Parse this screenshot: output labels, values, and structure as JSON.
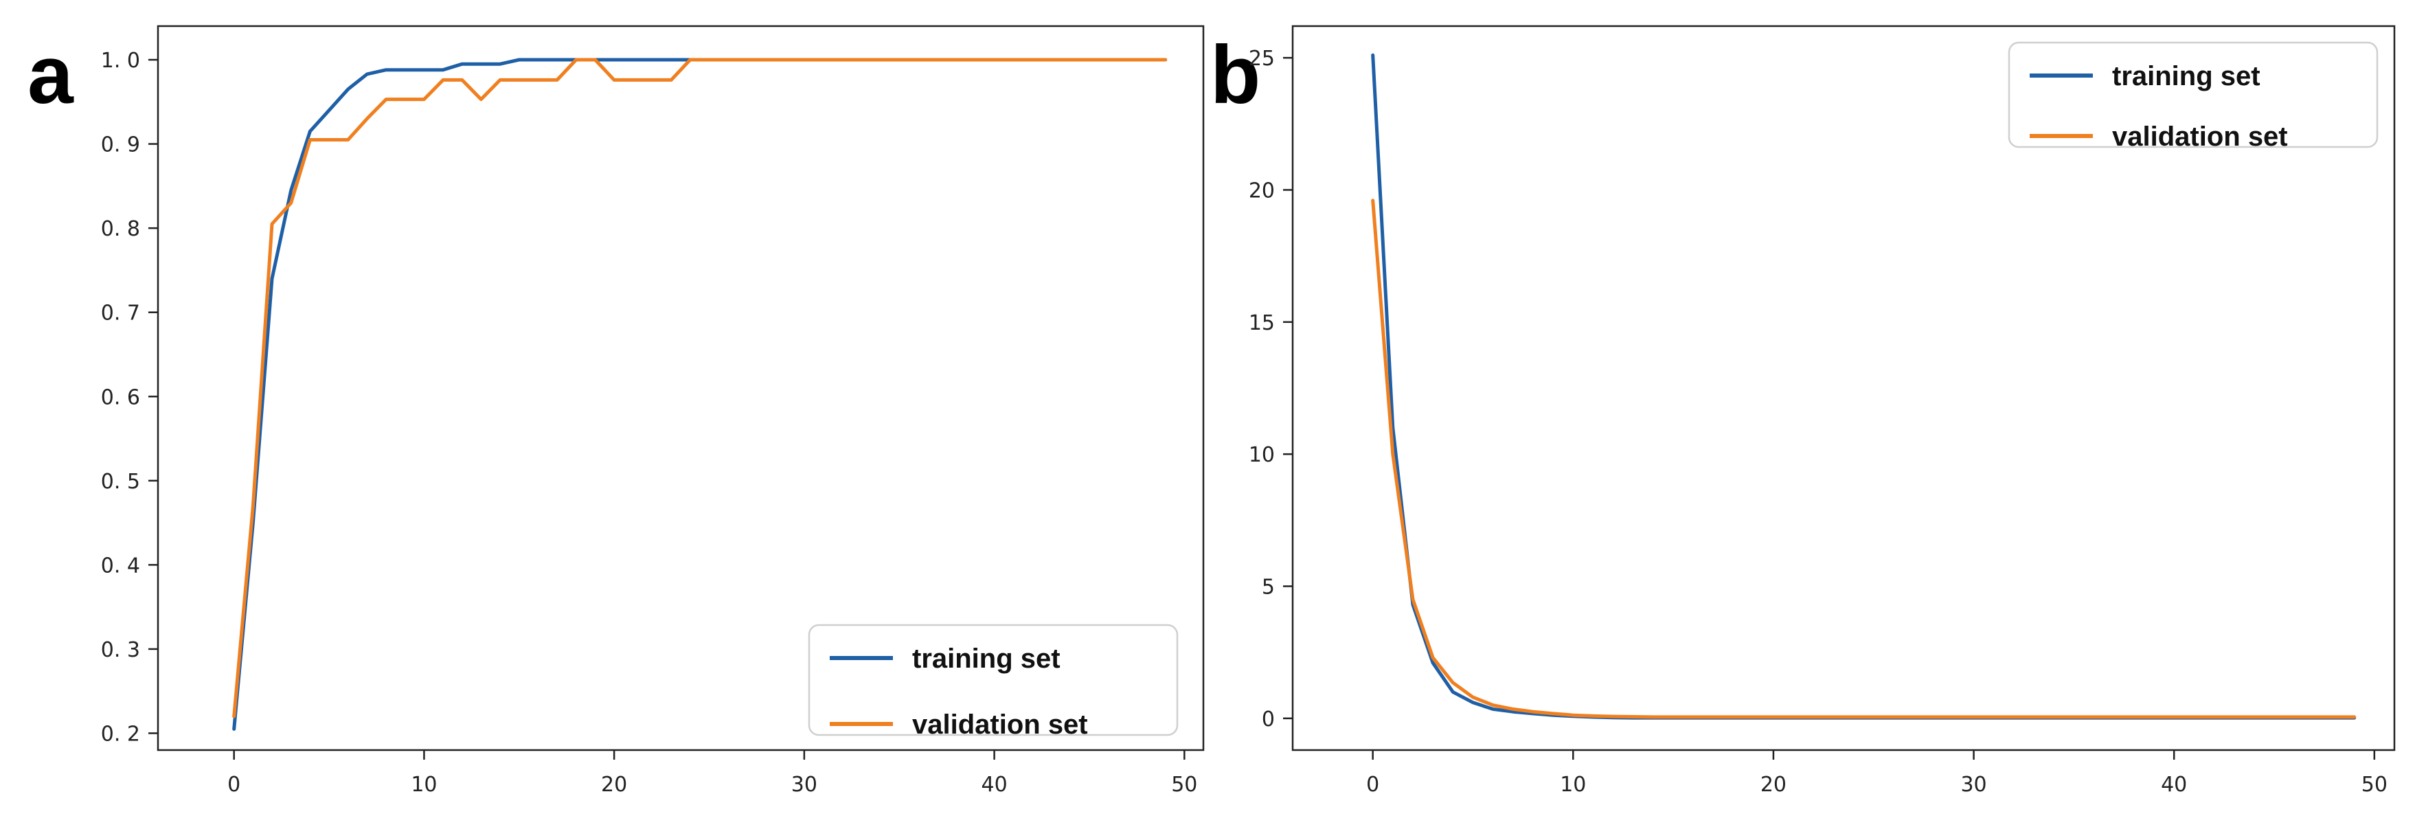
{
  "chart_data": [
    {
      "type": "line",
      "panel_label": "a",
      "xlim": [
        -4,
        51
      ],
      "ylim": [
        0.18,
        1.04
      ],
      "xticks": [
        0,
        10,
        20,
        30,
        40,
        50
      ],
      "yticks": [
        0.2,
        0.3,
        0.4,
        0.5,
        0.6,
        0.7,
        0.8,
        0.9,
        1.0
      ],
      "ytick_labels": [
        "0. 2",
        "0. 3",
        "0. 4",
        "0. 5",
        "0. 6",
        "0. 7",
        "0. 8",
        "0. 9",
        "1. 0"
      ],
      "grid": false,
      "legend_position": "lower-right",
      "series": [
        {
          "name": "training set",
          "color": "#1f5fa6",
          "x": [
            0,
            1,
            2,
            3,
            4,
            5,
            6,
            7,
            8,
            9,
            10,
            11,
            12,
            13,
            14,
            15,
            16,
            17,
            18,
            19,
            20,
            21,
            22,
            23,
            24,
            25,
            26,
            27,
            28,
            29,
            30,
            31,
            32,
            33,
            34,
            35,
            36,
            37,
            38,
            39,
            40,
            41,
            42,
            43,
            44,
            45,
            46,
            47,
            48,
            49
          ],
          "y": [
            0.205,
            0.45,
            0.74,
            0.845,
            0.915,
            0.94,
            0.965,
            0.983,
            0.988,
            0.988,
            0.988,
            0.988,
            0.995,
            0.995,
            0.995,
            1.0,
            1.0,
            1.0,
            1.0,
            1.0,
            1.0,
            1.0,
            1.0,
            1.0,
            1.0,
            1.0,
            1.0,
            1.0,
            1.0,
            1.0,
            1.0,
            1.0,
            1.0,
            1.0,
            1.0,
            1.0,
            1.0,
            1.0,
            1.0,
            1.0,
            1.0,
            1.0,
            1.0,
            1.0,
            1.0,
            1.0,
            1.0,
            1.0,
            1.0,
            1.0
          ]
        },
        {
          "name": "validation set",
          "color": "#f07f1f",
          "x": [
            0,
            1,
            2,
            3,
            4,
            5,
            6,
            7,
            8,
            9,
            10,
            11,
            12,
            13,
            14,
            15,
            16,
            17,
            18,
            19,
            20,
            21,
            22,
            23,
            24,
            25,
            26,
            27,
            28,
            29,
            30,
            31,
            32,
            33,
            34,
            35,
            36,
            37,
            38,
            39,
            40,
            41,
            42,
            43,
            44,
            45,
            46,
            47,
            48,
            49
          ],
          "y": [
            0.22,
            0.47,
            0.805,
            0.83,
            0.905,
            0.905,
            0.905,
            0.93,
            0.953,
            0.953,
            0.953,
            0.976,
            0.976,
            0.953,
            0.976,
            0.976,
            0.976,
            0.976,
            1.0,
            1.0,
            0.976,
            0.976,
            0.976,
            0.976,
            1.0,
            1.0,
            1.0,
            1.0,
            1.0,
            1.0,
            1.0,
            1.0,
            1.0,
            1.0,
            1.0,
            1.0,
            1.0,
            1.0,
            1.0,
            1.0,
            1.0,
            1.0,
            1.0,
            1.0,
            1.0,
            1.0,
            1.0,
            1.0,
            1.0,
            1.0
          ]
        }
      ]
    },
    {
      "type": "line",
      "panel_label": "b",
      "xlim": [
        -4,
        51
      ],
      "ylim": [
        -1.2,
        26.2
      ],
      "xticks": [
        0,
        10,
        20,
        30,
        40,
        50
      ],
      "yticks": [
        0,
        5,
        10,
        15,
        20,
        25
      ],
      "ytick_labels": [
        "0",
        "5",
        "10",
        "15",
        "20",
        "25"
      ],
      "grid": false,
      "legend_position": "upper-right",
      "series": [
        {
          "name": "training set",
          "color": "#1f5fa6",
          "x": [
            0,
            1,
            2,
            3,
            4,
            5,
            6,
            7,
            8,
            9,
            10,
            11,
            12,
            13,
            14,
            15,
            16,
            17,
            18,
            19,
            20,
            21,
            22,
            23,
            24,
            25,
            26,
            27,
            28,
            29,
            30,
            31,
            32,
            33,
            34,
            35,
            36,
            37,
            38,
            39,
            40,
            41,
            42,
            43,
            44,
            45,
            46,
            47,
            48,
            49
          ],
          "y": [
            25.1,
            11.0,
            4.3,
            2.1,
            1.0,
            0.6,
            0.35,
            0.25,
            0.18,
            0.12,
            0.08,
            0.05,
            0.03,
            0.02,
            0.02,
            0.02,
            0.02,
            0.02,
            0.02,
            0.02,
            0.02,
            0.02,
            0.02,
            0.02,
            0.02,
            0.02,
            0.02,
            0.02,
            0.02,
            0.02,
            0.02,
            0.02,
            0.02,
            0.02,
            0.02,
            0.02,
            0.02,
            0.02,
            0.02,
            0.02,
            0.02,
            0.02,
            0.02,
            0.02,
            0.02,
            0.02,
            0.02,
            0.02,
            0.02,
            0.02
          ]
        },
        {
          "name": "validation set",
          "color": "#f07f1f",
          "x": [
            0,
            1,
            2,
            3,
            4,
            5,
            6,
            7,
            8,
            9,
            10,
            11,
            12,
            13,
            14,
            15,
            16,
            17,
            18,
            19,
            20,
            21,
            22,
            23,
            24,
            25,
            26,
            27,
            28,
            29,
            30,
            31,
            32,
            33,
            34,
            35,
            36,
            37,
            38,
            39,
            40,
            41,
            42,
            43,
            44,
            45,
            46,
            47,
            48,
            49
          ],
          "y": [
            19.6,
            10.0,
            4.5,
            2.3,
            1.35,
            0.8,
            0.5,
            0.35,
            0.25,
            0.18,
            0.12,
            0.09,
            0.07,
            0.06,
            0.05,
            0.05,
            0.05,
            0.05,
            0.05,
            0.05,
            0.05,
            0.05,
            0.05,
            0.05,
            0.05,
            0.05,
            0.05,
            0.05,
            0.05,
            0.05,
            0.05,
            0.05,
            0.05,
            0.05,
            0.05,
            0.05,
            0.05,
            0.05,
            0.05,
            0.05,
            0.05,
            0.05,
            0.05,
            0.05,
            0.05,
            0.05,
            0.05,
            0.05,
            0.05,
            0.05
          ]
        }
      ]
    }
  ]
}
